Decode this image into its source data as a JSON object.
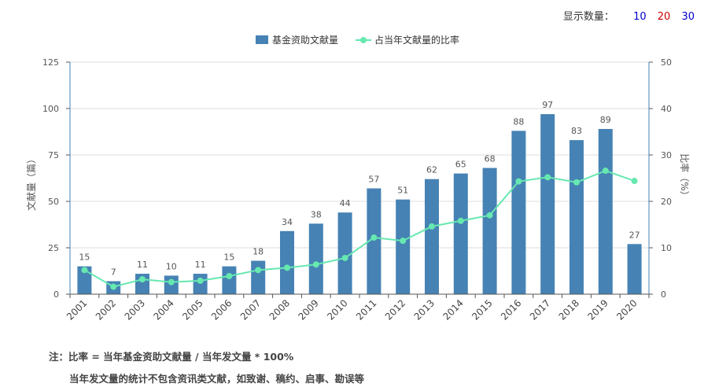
{
  "display_count": {
    "label": "显示数量：",
    "options": [
      {
        "label": "10",
        "color": "#0000cc"
      },
      {
        "label": "20",
        "color": "#cc0000"
      },
      {
        "label": "30",
        "color": "#0000cc"
      }
    ]
  },
  "notes": {
    "line1": "注：比率 = 当年基金资助文献量 / 当年发文量 * 100%",
    "line2": "当年发文量的统计不包含资讯类文献，如致谢、稿约、启事、勘误等"
  },
  "chart_data": {
    "type": "bar",
    "categories": [
      "2001",
      "2002",
      "2003",
      "2004",
      "2005",
      "2006",
      "2007",
      "2008",
      "2009",
      "2010",
      "2011",
      "2012",
      "2013",
      "2014",
      "2015",
      "2016",
      "2017",
      "2018",
      "2019",
      "2020"
    ],
    "series": [
      {
        "name": "基金资助文献量",
        "type": "bar",
        "axis": "left",
        "color": "#4682b4",
        "values": [
          15,
          7,
          11,
          10,
          11,
          15,
          18,
          34,
          38,
          44,
          57,
          51,
          62,
          65,
          68,
          88,
          97,
          83,
          89,
          27
        ]
      },
      {
        "name": "占当年文献量的比率",
        "type": "line",
        "axis": "right",
        "color": "#66e8b0",
        "values": [
          5.2,
          1.6,
          3.2,
          2.6,
          2.9,
          3.9,
          5.2,
          5.7,
          6.4,
          7.8,
          12.2,
          11.5,
          14.6,
          15.8,
          17.0,
          24.3,
          25.2,
          24.1,
          26.6,
          24.4
        ]
      }
    ],
    "ylabel": "文献量（篇）",
    "ylabel_right": "比率（%）",
    "ylim": [
      0,
      125
    ],
    "yticks": [
      0,
      25,
      50,
      75,
      100,
      125
    ],
    "ylim_right": [
      0,
      50
    ],
    "yticks_right": [
      0,
      10,
      20,
      30,
      40,
      50
    ],
    "grid": true,
    "legend_position": "top-center"
  }
}
